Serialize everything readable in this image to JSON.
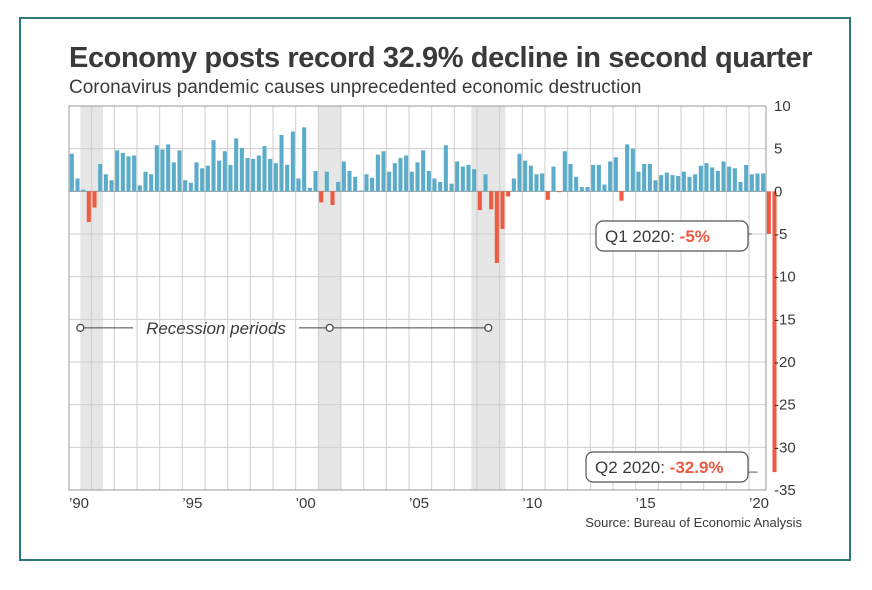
{
  "title": "Economy posts record 32.9% decline in second quarter",
  "subtitle": "Coronavirus pandemic causes unprecedented economic destruction",
  "source": "Source: Bureau of Economic Analysis",
  "colors": {
    "positive": "#5aacc9",
    "negative": "#ef5a42",
    "recession": "#e6e6e6",
    "grid": "#cfcfcf",
    "text": "#3a3a3a",
    "frame": "#2b7a78"
  },
  "recession_label": "Recession periods",
  "callouts": [
    {
      "label": "Q1 2020: ",
      "value": "-5%",
      "x": "2020 Q1",
      "y": -5
    },
    {
      "label": "Q2 2020: ",
      "value": "-32.9%",
      "x": "2020 Q2",
      "y": -32.9
    }
  ],
  "chart_data": {
    "type": "bar",
    "title": "Economy posts record 32.9% decline in second quarter",
    "subtitle": "Coronavirus pandemic causes unprecedented economic destruction",
    "xlabel": "",
    "ylabel": "",
    "y_axis_side": "right",
    "ylim": [
      -35,
      10
    ],
    "yticks": [
      10,
      5,
      0,
      -5,
      -10,
      -15,
      -20,
      -25,
      -30,
      -35
    ],
    "xticks": [
      {
        "label": "’90",
        "year": 1990
      },
      {
        "label": "’95",
        "year": 1995
      },
      {
        "label": "’00",
        "year": 2000
      },
      {
        "label": "’05",
        "year": 2005
      },
      {
        "label": "’10",
        "year": 2010
      },
      {
        "label": "’15",
        "year": 2015
      },
      {
        "label": "’20",
        "year": 2020
      }
    ],
    "grid": "vertical lines every year, horizontal lines every 5",
    "start_quarter": "1990 Q1",
    "values": [
      4.4,
      1.5,
      0.2,
      -3.6,
      -1.9,
      3.2,
      2.0,
      1.3,
      4.8,
      4.5,
      4.1,
      4.2,
      0.7,
      2.3,
      2.0,
      5.4,
      4.9,
      5.5,
      3.4,
      4.8,
      1.3,
      1.0,
      3.4,
      2.7,
      3.0,
      6.0,
      3.6,
      4.7,
      3.1,
      6.2,
      5.1,
      3.9,
      3.8,
      4.2,
      5.3,
      3.8,
      3.3,
      6.6,
      3.1,
      7.0,
      1.5,
      7.5,
      0.4,
      2.4,
      -1.3,
      2.3,
      -1.6,
      1.1,
      3.5,
      2.4,
      1.7,
      0.1,
      2.0,
      1.6,
      4.3,
      4.7,
      2.3,
      3.3,
      3.9,
      4.2,
      2.3,
      3.4,
      4.8,
      2.4,
      1.5,
      1.1,
      5.4,
      0.9,
      3.5,
      2.9,
      3.1,
      2.6,
      -2.2,
      2.0,
      -2.1,
      -8.4,
      -4.4,
      -0.6,
      1.5,
      4.4,
      3.6,
      3.0,
      2.0,
      2.1,
      -1.0,
      2.9,
      -0.1,
      4.7,
      3.2,
      1.7,
      0.5,
      0.5,
      3.1,
      3.1,
      0.8,
      3.5,
      4.0,
      -1.1,
      5.5,
      5.0,
      2.3,
      3.2,
      3.2,
      1.3,
      1.9,
      2.2,
      1.9,
      1.8,
      2.3,
      1.7,
      2.0,
      3.0,
      3.3,
      2.8,
      2.4,
      3.5,
      2.9,
      2.7,
      1.1,
      3.1,
      2.0,
      2.1,
      2.1,
      -5.0,
      -32.9
    ]
  }
}
